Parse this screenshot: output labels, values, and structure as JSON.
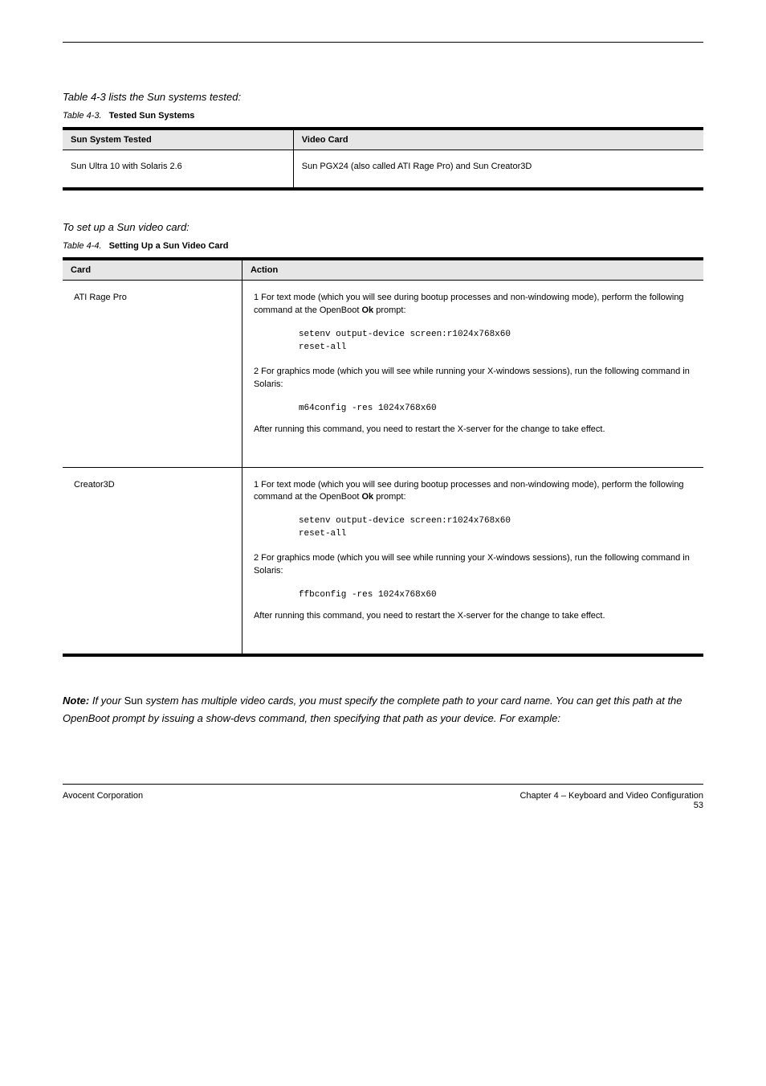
{
  "intro_label": "Table 4-3 lists the Sun systems tested:",
  "table_main": {
    "caption_num": "Table 4-3.",
    "caption_text": "Tested Sun Systems",
    "col1": "Sun System Tested",
    "col2": "Video Card",
    "row_system": "Sun Ultra 10 with Solaris 2.6",
    "row_cards": "Sun PGX24 (also called ATI Rage Pro) and Sun Creator3D"
  },
  "sub_intro": "To set up a Sun video card:",
  "table_sub": {
    "caption_num": "Table 4-4.",
    "caption_text": "Setting Up a Sun Video Card",
    "col1": "Card",
    "col2": "Action",
    "r1": {
      "card": "ATI Rage Pro",
      "step1_a": "1   For text mode (which you will see during bootup processes and non-windowing mode), perform the following command at the OpenBoot ",
      "step1_b": " prompt:",
      "ok": "Ok",
      "code1": "setenv output-device screen:r1024x768x60\nreset-all",
      "step2": "2   For graphics mode (which you will see while running your X-windows sessions), run the following command in Solaris:",
      "code2": "m64config -res 1024x768x60",
      "note": "After running this command, you need to restart the X-server for the change to take effect."
    },
    "r2": {
      "card": "Creator3D",
      "step1_a": "1   For text mode (which you will see during bootup processes and non-windowing mode), perform the following command at the OpenBoot ",
      "step1_b": " prompt:",
      "ok": "Ok",
      "code1": "setenv output-device screen:r1024x768x60\nreset-all",
      "step2": "2   For graphics mode (which you will see while running your X-windows sessions), run the following command in Solaris:",
      "code2": "ffbconfig -res 1024x768x60",
      "note": "After running this command, you need to restart the X-server for the change to take effect."
    }
  },
  "note_block": {
    "lead": "Note:",
    "body_a": "If your ",
    "brand": "Sun",
    "body_b": " system has multiple video cards, you must specify the complete path to your card name. You can get this path at the OpenBoot prompt by issuing a show-devs command, then specifying that path as your device. For example:"
  },
  "footer": {
    "left": "Avocent Corporation",
    "right_title": "Chapter 4 – Keyboard and Video Configuration",
    "right_page": "53"
  }
}
